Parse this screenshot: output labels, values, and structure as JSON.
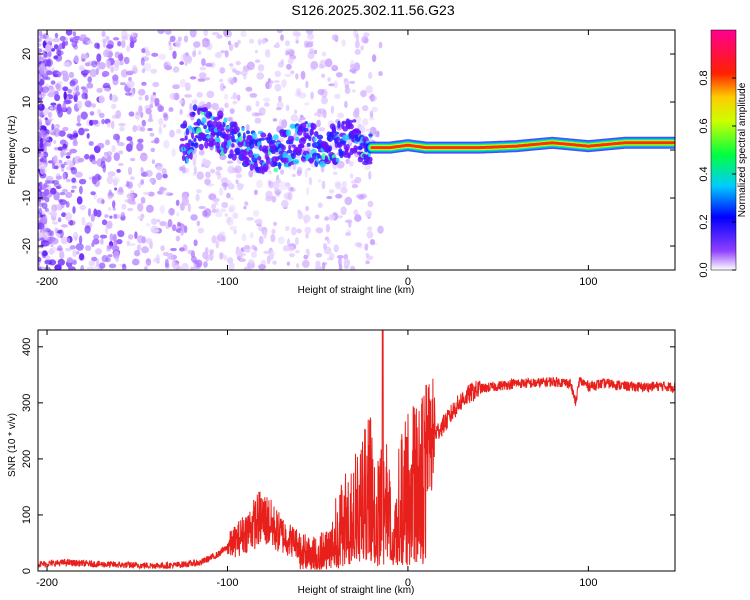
{
  "title": "S126.2025.302.11.56.G23",
  "chart_data": [
    {
      "type": "heatmap",
      "name": "spectrogram",
      "xlabel": "Height of straight line (km)",
      "ylabel": "Frequency (Hz)",
      "xlim": [
        -205,
        148
      ],
      "ylim": [
        -25,
        25
      ],
      "xticks": [
        -200,
        -100,
        0,
        100
      ],
      "yticks": [
        -20,
        -10,
        0,
        10,
        20
      ],
      "colorbar": {
        "label": "Normalized spectral amplitude",
        "range": [
          0,
          1
        ],
        "ticks": [
          "0.0",
          "0.2",
          "0.4",
          "0.6",
          "0.8"
        ],
        "tick_values": [
          0,
          0.2,
          0.4,
          0.6,
          0.8
        ],
        "colors": [
          "#ffffff",
          "#8000ff",
          "#0000ff",
          "#00ffff",
          "#00ff00",
          "#ffff00",
          "#ff0000",
          "#ff0080"
        ]
      },
      "ridge": {
        "x": [
          -120,
          -105,
          -95,
          -85,
          -75,
          -65,
          -55,
          -45,
          -38,
          -30,
          -25,
          -20,
          -10,
          0,
          10,
          20,
          40,
          60,
          80,
          100,
          120,
          148
        ],
        "y": [
          5,
          4,
          1,
          0,
          -1,
          1,
          2,
          0,
          2,
          3,
          1,
          0.5,
          0.5,
          1,
          0.5,
          0.5,
          0.5,
          0.8,
          1.5,
          0.8,
          1.5,
          1.5
        ]
      }
    },
    {
      "type": "line",
      "name": "snr",
      "xlabel": "Height of straight line (km)",
      "ylabel": "SNR (10 * v/v)",
      "xlim": [
        -205,
        148
      ],
      "ylim": [
        0,
        430
      ],
      "xticks": [
        -200,
        -100,
        0,
        100
      ],
      "yticks": [
        0,
        100,
        200,
        300,
        400
      ],
      "color": "#e8201c",
      "series": [
        {
          "name": "SNR",
          "x": [
            -205,
            -190,
            -170,
            -150,
            -130,
            -115,
            -105,
            -95,
            -88,
            -82,
            -78,
            -72,
            -65,
            -58,
            -50,
            -44,
            -40,
            -35,
            -30,
            -25,
            -20,
            -16,
            -13,
            -10,
            -8,
            -5,
            -2,
            2,
            6,
            10,
            14,
            18,
            22,
            26,
            30,
            35,
            40,
            50,
            60,
            70,
            80,
            90,
            93,
            95,
            100,
            110,
            120,
            130,
            140,
            148
          ],
          "y": [
            12,
            15,
            12,
            10,
            10,
            15,
            30,
            55,
            75,
            95,
            90,
            70,
            55,
            45,
            40,
            60,
            90,
            110,
            140,
            160,
            190,
            170,
            200,
            120,
            60,
            170,
            190,
            215,
            200,
            230,
            240,
            255,
            270,
            290,
            305,
            318,
            325,
            330,
            335,
            335,
            338,
            335,
            300,
            340,
            330,
            335,
            330,
            328,
            330,
            328
          ]
        }
      ],
      "annotations": {
        "peak": {
          "x": -14,
          "y": 430
        }
      }
    }
  ]
}
